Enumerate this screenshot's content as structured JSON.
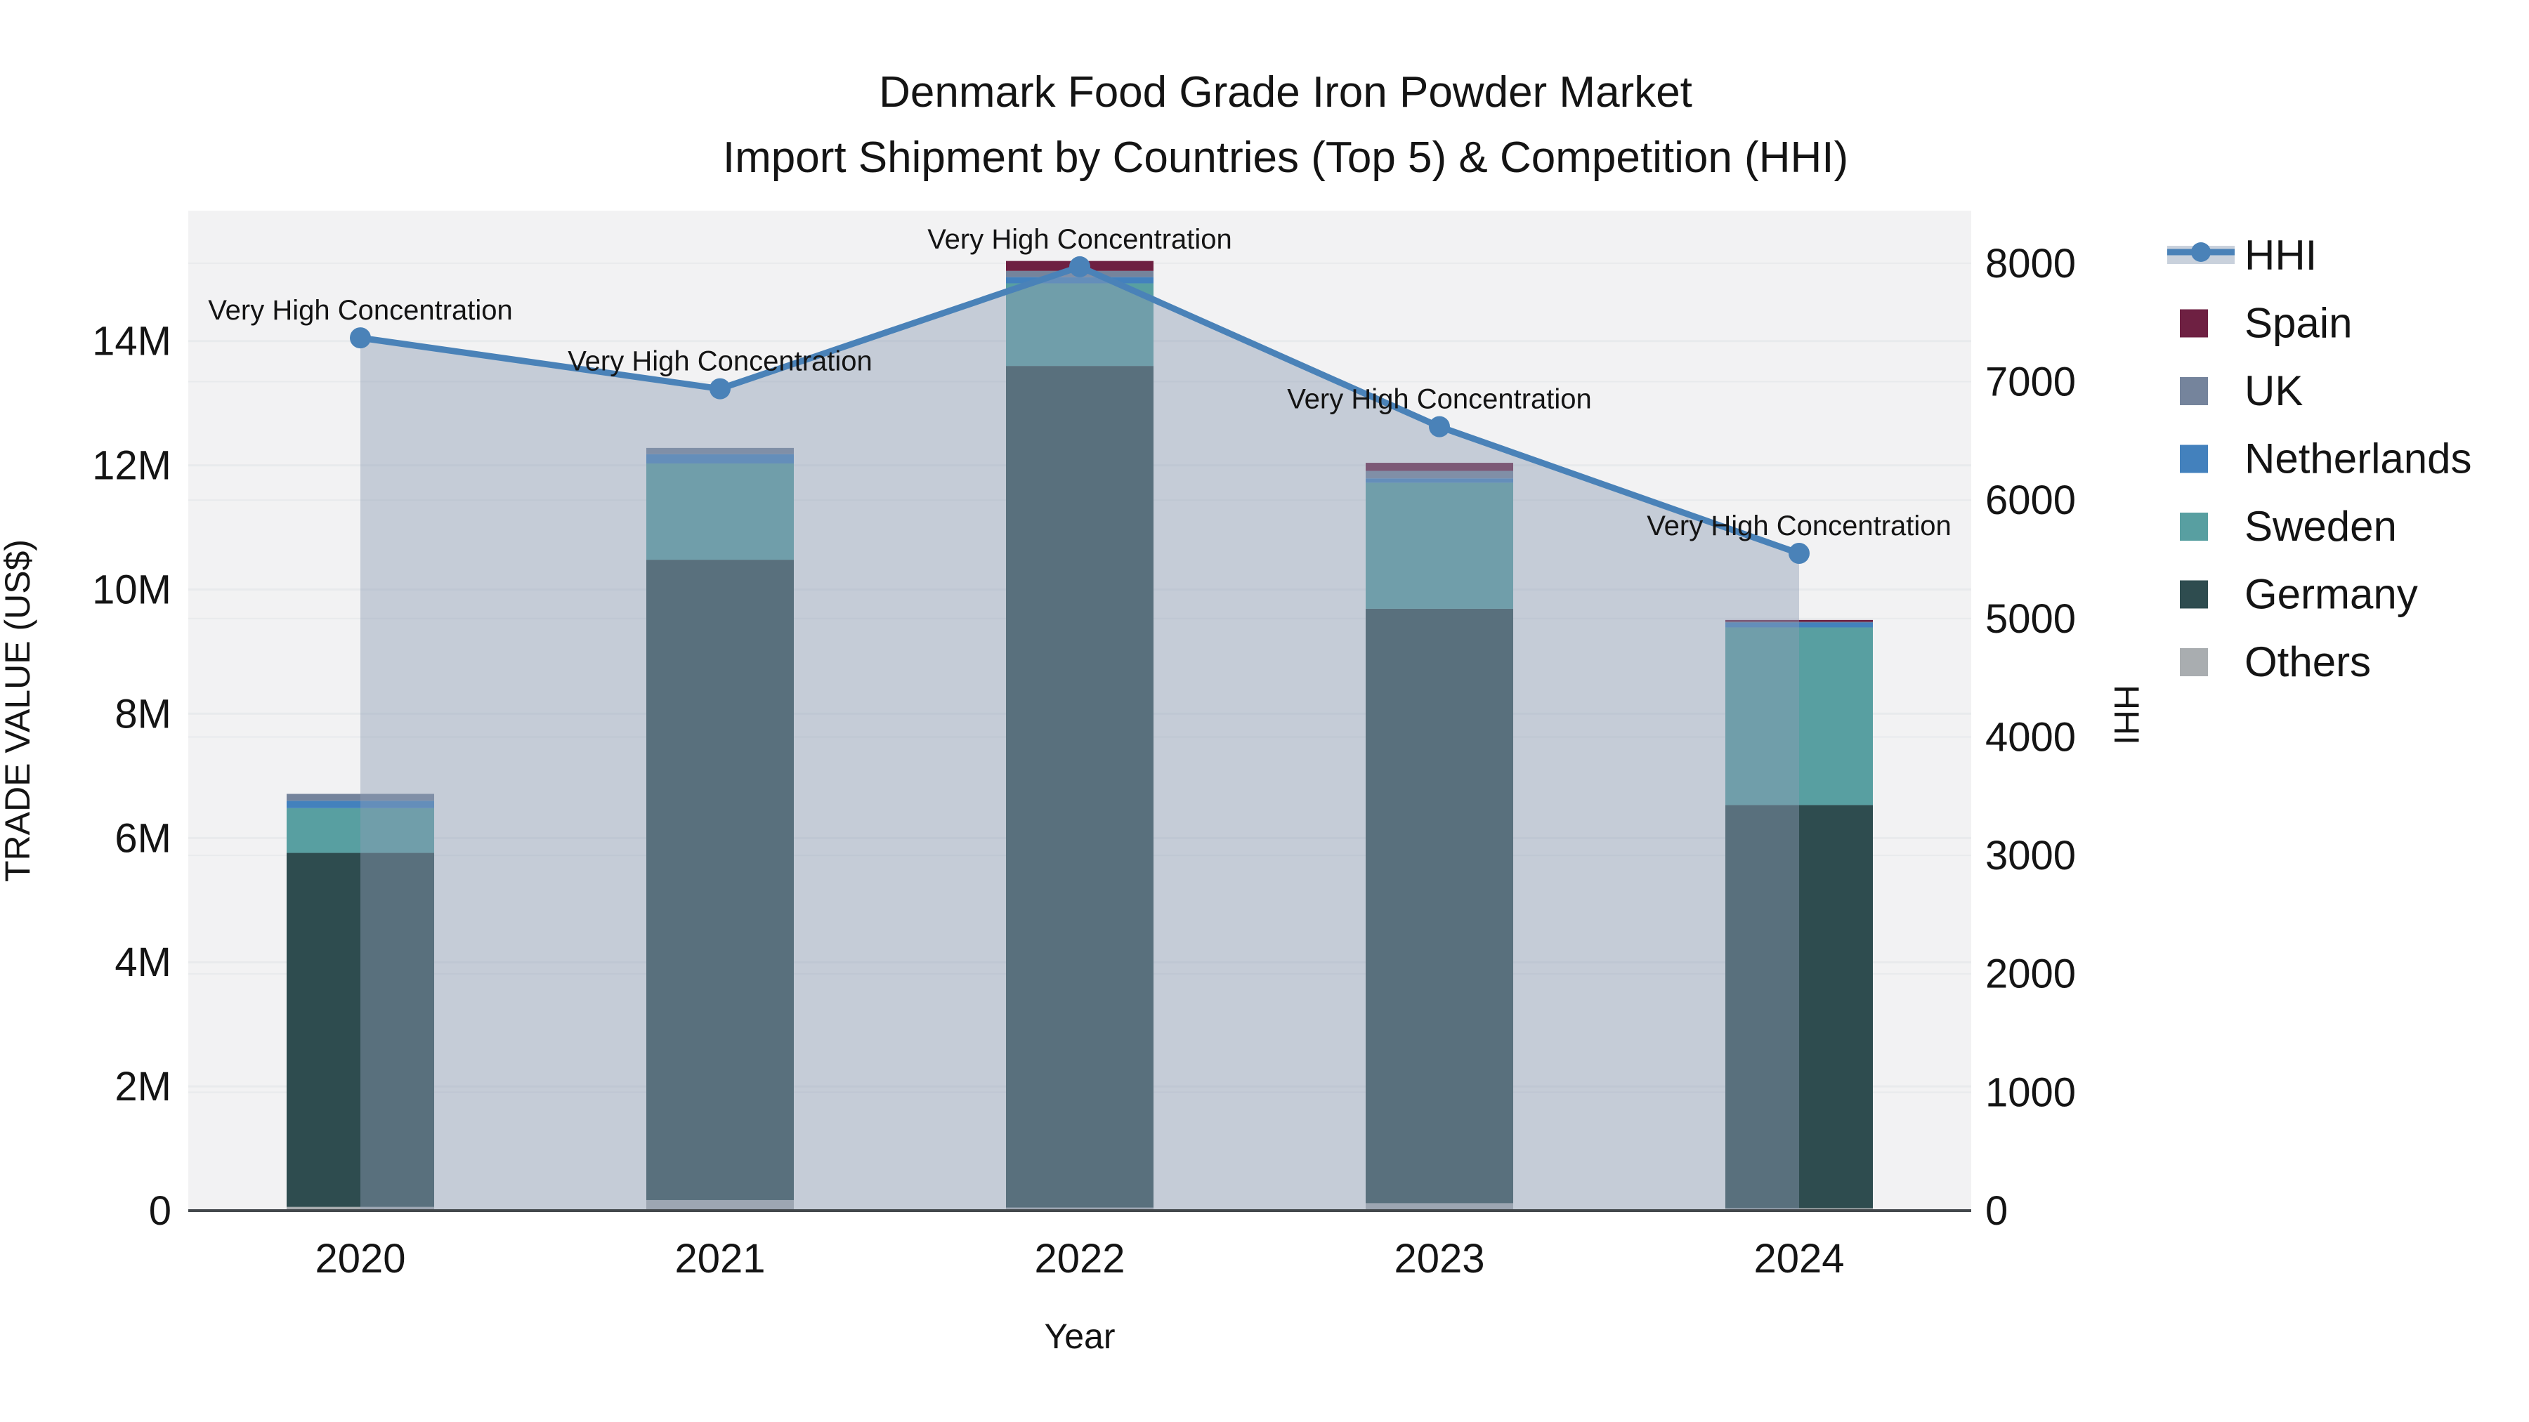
{
  "title": {
    "line1": "Denmark Food Grade Iron Powder Market",
    "line2": "Import Shipment by Countries (Top 5) & Competition (HHI)"
  },
  "chart_data": {
    "type": "bar",
    "subtype": "stacked-bars-with-line-overlay",
    "categories": [
      "2020",
      "2021",
      "2022",
      "2023",
      "2024"
    ],
    "xlabel": "Year",
    "ylabel_left": "TRADE VALUE (US$)",
    "ylabel_right": "HHI",
    "ylim_left_millions": [
      0,
      16.1
    ],
    "ylim_right": [
      0,
      8444
    ],
    "grid": "on",
    "legend_position": "right-outside",
    "plot_bg_color": "#f2f2f3",
    "grid_color": "#e8eaec",
    "yticks_left": [
      {
        "value": 0,
        "label": "0"
      },
      {
        "value": 2,
        "label": "2M"
      },
      {
        "value": 4,
        "label": "4M"
      },
      {
        "value": 6,
        "label": "6M"
      },
      {
        "value": 8,
        "label": "8M"
      },
      {
        "value": 10,
        "label": "10M"
      },
      {
        "value": 12,
        "label": "12M"
      },
      {
        "value": 14,
        "label": "14M"
      }
    ],
    "yticks_right": [
      {
        "value": 0,
        "label": "0"
      },
      {
        "value": 1000,
        "label": "1000"
      },
      {
        "value": 2000,
        "label": "2000"
      },
      {
        "value": 3000,
        "label": "3000"
      },
      {
        "value": 4000,
        "label": "4000"
      },
      {
        "value": 5000,
        "label": "5000"
      },
      {
        "value": 6000,
        "label": "6000"
      },
      {
        "value": 7000,
        "label": "7000"
      },
      {
        "value": 8000,
        "label": "8000"
      }
    ],
    "series": [
      {
        "name": "Others",
        "color": "#a9adb0",
        "values_millions": [
          0.06,
          0.17,
          0.05,
          0.12,
          0.04
        ]
      },
      {
        "name": "Germany",
        "color": "#2e4c4f",
        "values_millions": [
          5.7,
          10.31,
          13.55,
          9.57,
          6.49
        ]
      },
      {
        "name": "Sweden",
        "color": "#589fa1",
        "values_millions": [
          0.72,
          1.55,
          1.33,
          2.03,
          2.86
        ]
      },
      {
        "name": "Netherlands",
        "color": "#4381bd",
        "values_millions": [
          0.12,
          0.15,
          0.1,
          0.07,
          0.08
        ]
      },
      {
        "name": "UK",
        "color": "#75849c",
        "values_millions": [
          0.11,
          0.1,
          0.1,
          0.12,
          0.01
        ]
      },
      {
        "name": "Spain",
        "color": "#6e2042",
        "values_millions": [
          0.0,
          0.0,
          0.16,
          0.13,
          0.03
        ]
      }
    ],
    "line_series": {
      "name": "HHI",
      "color": "#4a82b8",
      "area_fill": "rgba(141,157,181,0.45)",
      "values": [
        7370,
        6940,
        7970,
        6620,
        5550
      ]
    },
    "annotations": [
      {
        "x": "2020",
        "text": "Very High Concentration"
      },
      {
        "x": "2021",
        "text": "Very High Concentration"
      },
      {
        "x": "2022",
        "text": "Very High Concentration"
      },
      {
        "x": "2023",
        "text": "Very High Concentration"
      },
      {
        "x": "2024",
        "text": "Very High Concentration"
      }
    ],
    "legend_order": [
      "HHI",
      "Spain",
      "UK",
      "Netherlands",
      "Sweden",
      "Germany",
      "Others"
    ]
  }
}
